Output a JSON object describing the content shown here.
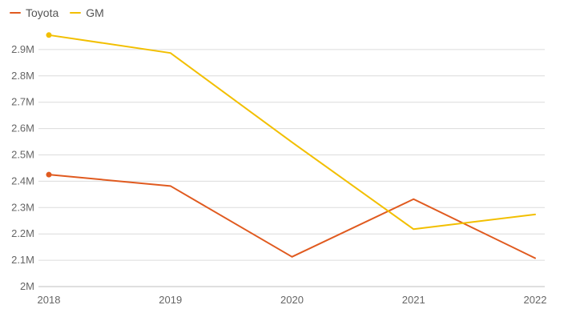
{
  "chart_data": {
    "type": "line",
    "categories": [
      "2018",
      "2019",
      "2020",
      "2021",
      "2022"
    ],
    "series": [
      {
        "name": "Toyota",
        "color": "#e05a1f",
        "values": [
          2.425,
          2.382,
          2.113,
          2.332,
          2.108
        ]
      },
      {
        "name": "GM",
        "color": "#f2bf00",
        "values": [
          2.955,
          2.887,
          2.548,
          2.218,
          2.274
        ]
      }
    ],
    "yticks": [
      2.0,
      2.1,
      2.2,
      2.3,
      2.4,
      2.5,
      2.6,
      2.7,
      2.8,
      2.9
    ],
    "ytick_labels": [
      "2M",
      "2.1M",
      "2.2M",
      "2.3M",
      "2.4M",
      "2.5M",
      "2.6M",
      "2.7M",
      "2.8M",
      "2.9M"
    ],
    "ylim": [
      2.0,
      3.0
    ],
    "unit_note": "values in millions",
    "grid": true,
    "legend_position": "top-left"
  }
}
